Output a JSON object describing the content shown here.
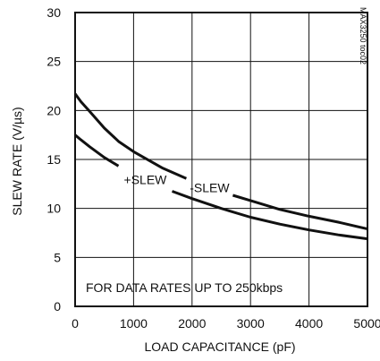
{
  "chart_data": {
    "type": "line",
    "xlabel": "LOAD CAPACITANCE (pF)",
    "ylabel": "SLEW RATE (V/µs)",
    "xlim": [
      0,
      5000
    ],
    "ylim": [
      0,
      30
    ],
    "x_ticks": [
      0,
      1000,
      2000,
      3000,
      4000,
      5000
    ],
    "y_ticks": [
      0,
      5,
      10,
      15,
      20,
      25,
      30
    ],
    "x_tick_labels": [
      "0",
      "1000",
      "2000",
      "3000",
      "4000",
      "5000"
    ],
    "y_tick_labels": [
      "0",
      "5",
      "10",
      "15",
      "20",
      "25",
      "30"
    ],
    "grid": true,
    "figure_id": "MAX3250 toc02",
    "note": "FOR DATA RATES UP TO 250kbps",
    "series": [
      {
        "name": "-SLEW",
        "x": [
          0,
          100,
          250,
          500,
          750,
          1000,
          1500,
          2000,
          2500,
          3000,
          3500,
          4000,
          4500,
          5000
        ],
        "y": [
          21.7,
          20.9,
          19.9,
          18.2,
          16.8,
          15.8,
          14.1,
          12.8,
          11.7,
          10.8,
          9.9,
          9.2,
          8.6,
          7.9
        ]
      },
      {
        "name": "+SLEW",
        "x": [
          0,
          100,
          250,
          500,
          750,
          1000,
          1500,
          2000,
          2500,
          3000,
          3500,
          4000,
          4500,
          5000
        ],
        "y": [
          17.5,
          17.0,
          16.3,
          15.2,
          14.3,
          13.5,
          12.1,
          11.0,
          10.0,
          9.1,
          8.4,
          7.8,
          7.3,
          6.9
        ]
      }
    ]
  }
}
